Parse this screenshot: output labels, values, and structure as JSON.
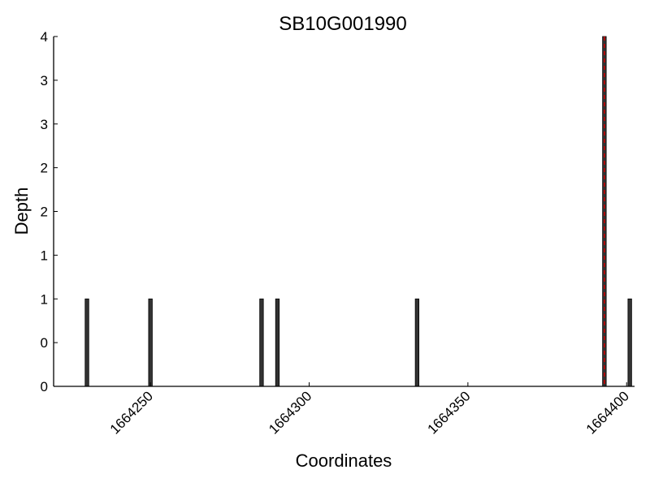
{
  "chart_data": {
    "type": "bar",
    "title": "SB10G001990",
    "xlabel": "Coordinates",
    "ylabel": "Depth",
    "xlim": [
      1664219.5,
      1664402.5
    ],
    "ylim": [
      0,
      4
    ],
    "x_ticks": [
      1664250,
      1664300,
      1664350,
      1664400
    ],
    "x_tick_labels": [
      "1664250",
      "1664300",
      "1664350",
      "1664400"
    ],
    "y_tick_labels": [
      "0",
      "0",
      "1",
      "1",
      "2",
      "2",
      "3",
      "3",
      "4"
    ],
    "grid": false,
    "bars": [
      {
        "x": 1664230,
        "value": 1
      },
      {
        "x": 1664250,
        "value": 1
      },
      {
        "x": 1664285,
        "value": 1
      },
      {
        "x": 1664290,
        "value": 1
      },
      {
        "x": 1664334,
        "value": 1
      },
      {
        "x": 1664393,
        "value": 4,
        "highlight": true
      },
      {
        "x": 1664401,
        "value": 1
      }
    ],
    "bar_color": "#333333",
    "highlight_line_color": "#cc0000"
  }
}
